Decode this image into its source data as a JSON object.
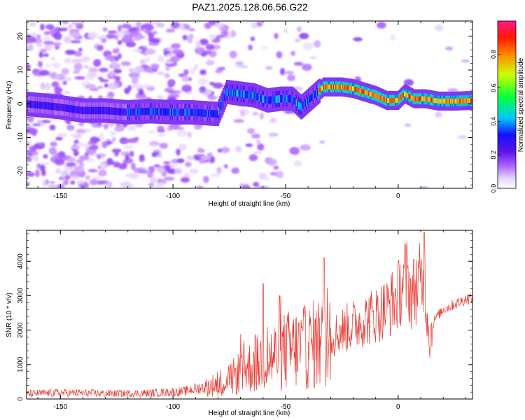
{
  "figure": {
    "title": "PAZ1.2025.128.06.56.G22"
  },
  "chart_data": [
    {
      "type": "heatmap",
      "xlabel": "Height of straight line (km)",
      "ylabel": "Frequency (Hz)",
      "xlim": [
        -165,
        33
      ],
      "ylim": [
        -25,
        24.5
      ],
      "xticks": [
        -150,
        -100,
        -50,
        0
      ],
      "yticks": [
        -20,
        -10,
        0,
        10,
        20
      ],
      "grid": false,
      "ridge_path": [
        {
          "x": -165,
          "y": 0.0
        },
        {
          "x": -150,
          "y": -1.0
        },
        {
          "x": -140,
          "y": -2.0
        },
        {
          "x": -130,
          "y": -2.0
        },
        {
          "x": -120,
          "y": -2.5
        },
        {
          "x": -110,
          "y": -2.2
        },
        {
          "x": -100,
          "y": -2.5
        },
        {
          "x": -92,
          "y": -2.5
        },
        {
          "x": -85,
          "y": -2.8
        },
        {
          "x": -80,
          "y": -3.0
        },
        {
          "x": -76,
          "y": 3.5
        },
        {
          "x": -70,
          "y": 3.0
        },
        {
          "x": -64,
          "y": 2.5
        },
        {
          "x": -58,
          "y": 1.0
        },
        {
          "x": -52,
          "y": 1.5
        },
        {
          "x": -47,
          "y": 1.5
        },
        {
          "x": -43,
          "y": -1.0
        },
        {
          "x": -38,
          "y": 2.0
        },
        {
          "x": -33,
          "y": 5.0
        },
        {
          "x": -25,
          "y": 5.0
        },
        {
          "x": -20,
          "y": 4.5
        },
        {
          "x": -15,
          "y": 3.5
        },
        {
          "x": -10,
          "y": 2.5
        },
        {
          "x": -5,
          "y": 1.0
        },
        {
          "x": 0,
          "y": 1.0
        },
        {
          "x": 3,
          "y": 3.0
        },
        {
          "x": 7,
          "y": 1.5
        },
        {
          "x": 12,
          "y": 1.5
        },
        {
          "x": 18,
          "y": 0.8
        },
        {
          "x": 25,
          "y": 0.8
        },
        {
          "x": 33,
          "y": 1.0
        }
      ],
      "colorbar": {
        "label": "Normalized spectral amplitude",
        "range": [
          0,
          1
        ],
        "ticks": [
          "0.0",
          "0.2",
          "0.4",
          "0.6",
          "0.8"
        ],
        "tick_values": [
          0,
          0.2,
          0.4,
          0.6,
          0.8
        ]
      }
    },
    {
      "type": "line",
      "xlabel": "Height of straight line (km)",
      "ylabel": "SNR (10 * v/v)",
      "xlim": [
        -165,
        33
      ],
      "ylim": [
        0,
        4900
      ],
      "xticks": [
        -150,
        -100,
        -50,
        0
      ],
      "yticks": [
        0,
        1000,
        2000,
        3000,
        4000
      ],
      "grid": false,
      "series": [
        {
          "color": "#e8362d",
          "x": [
            -165,
            -150,
            -140,
            -130,
            -120,
            -110,
            -100,
            -95,
            -90,
            -85,
            -80,
            -75,
            -70,
            -65,
            -60,
            -55,
            -50,
            -45,
            -40,
            -35,
            -30,
            -25,
            -20,
            -15,
            -10,
            -5,
            0,
            2,
            4,
            6,
            8,
            10,
            12,
            14,
            16,
            20,
            25,
            30,
            33
          ],
          "y": [
            150,
            180,
            170,
            160,
            160,
            170,
            200,
            220,
            300,
            350,
            450,
            550,
            800,
            950,
            1100,
            1250,
            1400,
            1450,
            1500,
            1650,
            1800,
            2000,
            2150,
            2300,
            2450,
            2650,
            3000,
            3400,
            3500,
            3000,
            3300,
            3400,
            3200,
            1700,
            2300,
            2600,
            2750,
            2900,
            2950
          ]
        }
      ],
      "spikes": [
        {
          "x": -60,
          "y": 3350
        },
        {
          "x": -33,
          "y": 4100
        },
        {
          "x": 3,
          "y": 4500
        },
        {
          "x": 11.5,
          "y": 4850
        }
      ]
    }
  ]
}
